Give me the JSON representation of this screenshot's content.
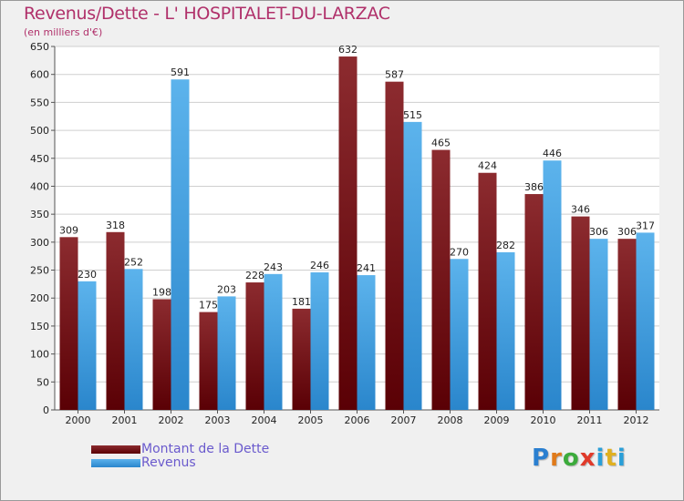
{
  "header": {
    "title": "Revenus/Dette - L' HOSPITALET-DU-LARZAC",
    "subtitle": "(en milliers d'€)"
  },
  "colors": {
    "title": "#b0306a",
    "dette": "#7a1a1d",
    "revenus": "#3e9ce0",
    "legend_text": "#6a5acd"
  },
  "logo": {
    "text": "Proxiti"
  },
  "chart_data": {
    "type": "bar",
    "title": "Revenus/Dette - L' HOSPITALET-DU-LARZAC",
    "ylabel": "(en milliers d'€)",
    "categories": [
      "2000",
      "2001",
      "2002",
      "2003",
      "2004",
      "2005",
      "2006",
      "2007",
      "2008",
      "2009",
      "2010",
      "2011",
      "2012"
    ],
    "series": [
      {
        "name": "Montant de la Dette",
        "values": [
          309,
          318,
          198,
          175,
          228,
          181,
          632,
          587,
          465,
          424,
          386,
          346,
          306
        ]
      },
      {
        "name": "Revenus",
        "values": [
          230,
          252,
          591,
          203,
          243,
          246,
          241,
          515,
          270,
          282,
          446,
          306,
          317
        ]
      }
    ],
    "ylim": [
      0,
      650
    ],
    "yticks": [
      0,
      50,
      100,
      150,
      200,
      250,
      300,
      350,
      400,
      450,
      500,
      550,
      600,
      650
    ],
    "grid": true,
    "legend_position": "bottom-left"
  }
}
